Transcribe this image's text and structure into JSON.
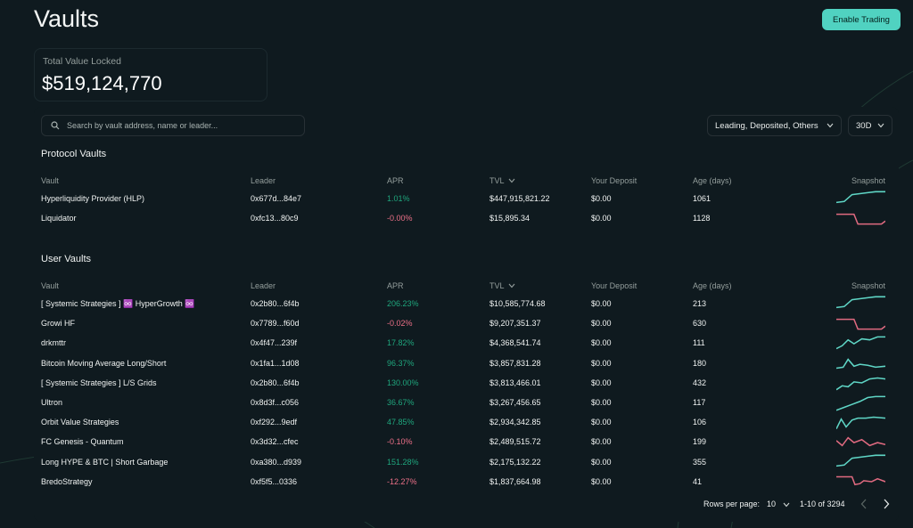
{
  "page": {
    "title": "Vaults"
  },
  "header": {
    "enable_trading_label": "Enable Trading"
  },
  "tvl": {
    "label": "Total Value Locked",
    "value": "$519,124,770"
  },
  "search": {
    "placeholder": "Search by vault address, name or leader..."
  },
  "filters": {
    "selected": "Leading, Deposited, Others",
    "range": "30D"
  },
  "columns": {
    "vault": "Vault",
    "leader": "Leader",
    "apr": "APR",
    "tvl": "TVL",
    "deposit": "Your Deposit",
    "age": "Age (days)",
    "snapshot": "Snapshot"
  },
  "protocol_vaults": {
    "title": "Protocol Vaults",
    "rows": [
      {
        "name": "Hyperliquidity Provider (HLP)",
        "leader": "0x677d...84e7",
        "apr": "1.01%",
        "trend": "up",
        "tvl": "$447,915,821.22",
        "deposit": "$0.00",
        "age": "1061"
      },
      {
        "name": "Liquidator",
        "leader": "0xfc13...80c9",
        "apr": "-0.00%",
        "trend": "down",
        "tvl": "$15,895.34",
        "deposit": "$0.00",
        "age": "1128"
      }
    ]
  },
  "user_vaults": {
    "title": "User Vaults",
    "rows": [
      {
        "name": "[ Systemic Strategies ] ♾️ HyperGrowth ♾️",
        "leader": "0x2b80...6f4b",
        "apr": "206.23%",
        "trend": "up",
        "tvl": "$10,585,774.68",
        "deposit": "$0.00",
        "age": "213"
      },
      {
        "name": "Growi HF",
        "leader": "0x7789...f60d",
        "apr": "-0.02%",
        "trend": "down",
        "tvl": "$9,207,351.37",
        "deposit": "$0.00",
        "age": "630"
      },
      {
        "name": "drkmttr",
        "leader": "0x4f47...239f",
        "apr": "17.82%",
        "trend": "up",
        "tvl": "$4,368,541.74",
        "deposit": "$0.00",
        "age": "111"
      },
      {
        "name": "Bitcoin Moving Average Long/Short",
        "leader": "0x1fa1...1d08",
        "apr": "96.37%",
        "trend": "up",
        "tvl": "$3,857,831.28",
        "deposit": "$0.00",
        "age": "180"
      },
      {
        "name": "[ Systemic Strategies ] L/S Grids",
        "leader": "0x2b80...6f4b",
        "apr": "130.00%",
        "trend": "up",
        "tvl": "$3,813,466.01",
        "deposit": "$0.00",
        "age": "432"
      },
      {
        "name": "Ultron",
        "leader": "0x8d3f...c056",
        "apr": "36.67%",
        "trend": "up",
        "tvl": "$3,267,456.65",
        "deposit": "$0.00",
        "age": "117"
      },
      {
        "name": "Orbit Value Strategies",
        "leader": "0xf292...9edf",
        "apr": "47.85%",
        "trend": "up",
        "tvl": "$2,934,342.85",
        "deposit": "$0.00",
        "age": "106"
      },
      {
        "name": "FC Genesis - Quantum",
        "leader": "0x3d32...cfec",
        "apr": "-0.10%",
        "trend": "down",
        "tvl": "$2,489,515.72",
        "deposit": "$0.00",
        "age": "199"
      },
      {
        "name": "Long HYPE & BTC | Short Garbage",
        "leader": "0xa380...d939",
        "apr": "151.28%",
        "trend": "up",
        "tvl": "$2,175,132.22",
        "deposit": "$0.00",
        "age": "355"
      },
      {
        "name": "BredoStrategy",
        "leader": "0xf5f5...0336",
        "apr": "-12.27%",
        "trend": "down",
        "tvl": "$1,837,664.98",
        "deposit": "$0.00",
        "age": "41"
      }
    ]
  },
  "pagination": {
    "rows_label": "Rows per page:",
    "rows_value": "10",
    "range": "1-10 of 3294"
  },
  "colors": {
    "accent": "#50d2c1",
    "positive": "#1fa67d",
    "negative": "#ed7088",
    "sparkline_up": "#5fd6c6",
    "sparkline_down": "#e06a80"
  }
}
